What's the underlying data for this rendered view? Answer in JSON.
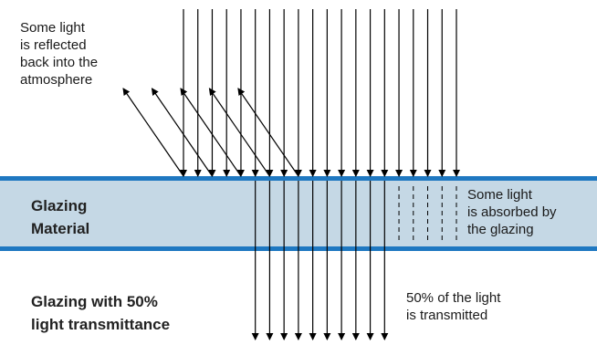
{
  "labels": {
    "reflected_note": "Some light\nis reflected\nback into the\natmosphere",
    "material_title": "Glazing\nMaterial",
    "absorbed_note": "Some light\nis absorbed by\nthe glazing",
    "transmittance_title": "Glazing with 50%\nlight transmittance",
    "transmitted_note": "50% of the light\nis transmitted"
  },
  "colors": {
    "background": "#ffffff",
    "material_fill": "#c5d8e5",
    "material_border": "#1f78c1",
    "ray": "#000000"
  },
  "light_model": {
    "incoming_rays": 20,
    "reflected_rays": 5,
    "transmitted_rays": 10,
    "absorbed_rays": 5,
    "transmittance_percent": 50
  }
}
